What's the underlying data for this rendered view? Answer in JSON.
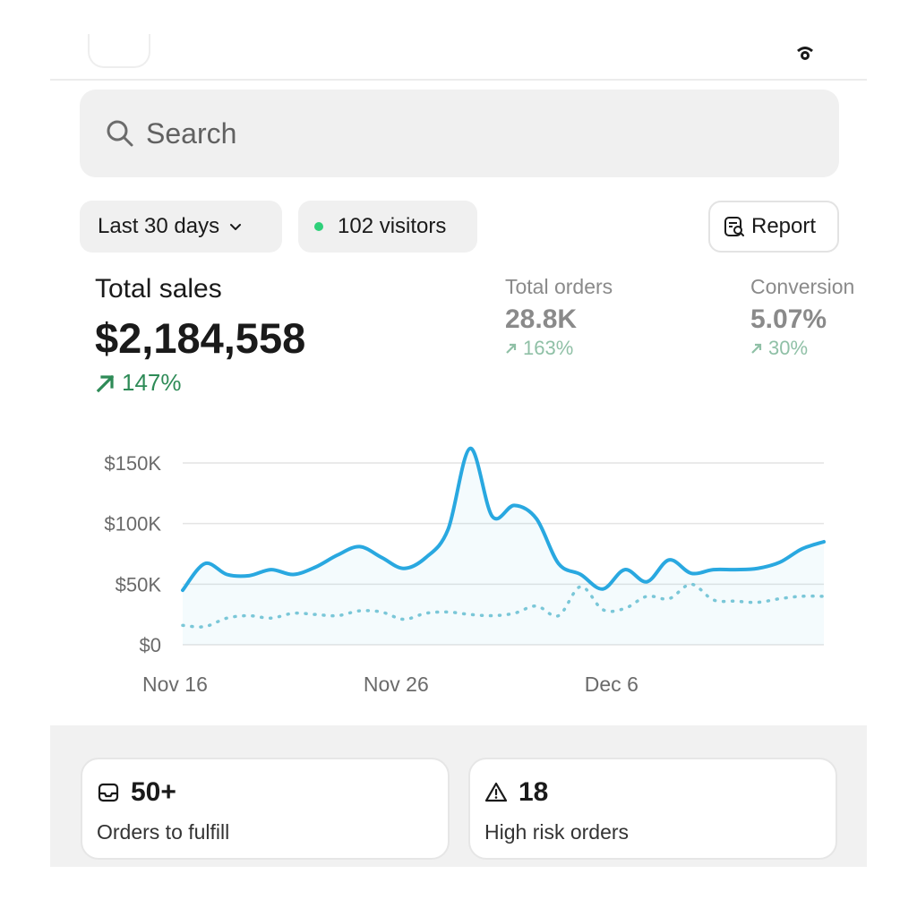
{
  "search": {
    "placeholder": "Search"
  },
  "filters": {
    "date_range": "Last 30 days",
    "visitors": "102 visitors",
    "report_label": "Report"
  },
  "metrics": {
    "total_sales": {
      "label": "Total sales",
      "value": "$2,184,558",
      "delta": "147%"
    },
    "total_orders": {
      "label": "Total orders",
      "value": "28.8K",
      "delta": "163%"
    },
    "conversion": {
      "label": "Conversion",
      "value": "5.07%",
      "delta": "30%"
    }
  },
  "chart_data": {
    "type": "line",
    "y_ticks": [
      "$150K",
      "$100K",
      "$50K",
      "$0"
    ],
    "x_ticks": [
      "Nov 16",
      "Nov 26",
      "Dec 6"
    ],
    "ylim": [
      0,
      150000
    ],
    "grid": true,
    "series": [
      {
        "style": "solid",
        "color": "#29a8e0",
        "values": [
          45000,
          67000,
          58000,
          57000,
          62000,
          58000,
          64000,
          74000,
          81000,
          72000,
          63000,
          72000,
          95000,
          162000,
          106000,
          115000,
          104000,
          67000,
          58000,
          46000,
          62000,
          52000,
          70000,
          59000,
          62000,
          62000,
          63000,
          68000,
          79000,
          85000
        ]
      },
      {
        "style": "dotted",
        "color": "#7fc9d8",
        "values": [
          16000,
          15000,
          22000,
          24000,
          22000,
          26000,
          25000,
          24000,
          28000,
          27000,
          21000,
          26000,
          27000,
          25000,
          24000,
          26000,
          32000,
          24000,
          48000,
          29000,
          30000,
          40000,
          38000,
          50000,
          37000,
          36000,
          35000,
          38000,
          40000,
          40000
        ]
      }
    ]
  },
  "cards": [
    {
      "value": "50+",
      "label": "Orders to fulfill",
      "icon": "inbox-icon"
    },
    {
      "value": "18",
      "label": "High risk orders",
      "icon": "alert-triangle-icon"
    }
  ],
  "colors": {
    "accent_line": "#29a8e0",
    "positive": "#2e8b57",
    "visitor_dot": "#2fd07a"
  }
}
